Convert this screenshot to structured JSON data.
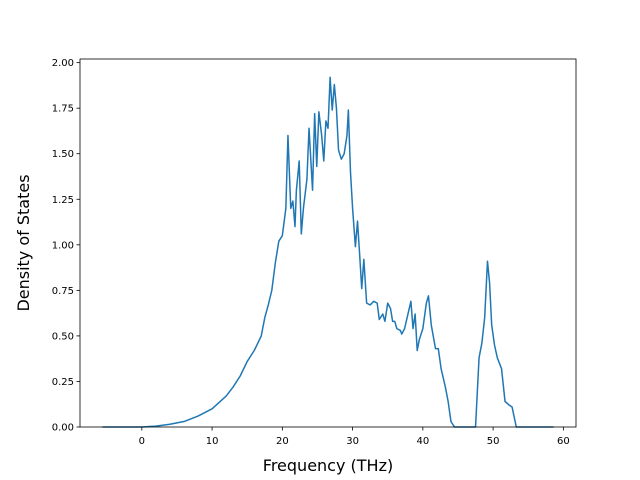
{
  "chart_data": {
    "type": "line",
    "x_label": "Frequency (THz)",
    "y_label": "Density of States",
    "color": "#1f77b4",
    "x": [
      -5.6,
      0,
      2,
      4,
      6,
      8,
      10,
      12,
      13,
      14,
      15,
      16,
      17,
      17.5,
      18,
      18.5,
      19,
      19.5,
      20,
      20.5,
      20.8,
      21.2,
      21.5,
      21.8,
      22,
      22.4,
      22.7,
      23,
      23.5,
      23.8,
      24.3,
      24.6,
      24.9,
      25.2,
      25.6,
      25.9,
      26.2,
      26.5,
      26.8,
      27.1,
      27.4,
      27.7,
      28,
      28.4,
      28.8,
      29.2,
      29.4,
      29.7,
      30,
      30.4,
      30.7,
      31,
      31.3,
      31.6,
      32,
      32.5,
      33,
      33.5,
      33.8,
      34.3,
      34.6,
      35,
      35.4,
      35.7,
      36,
      36.3,
      36.8,
      37,
      37.4,
      38,
      38.3,
      38.6,
      38.9,
      39.2,
      39.5,
      40,
      40.5,
      40.8,
      41.2,
      41.8,
      42.2,
      42.6,
      43.2,
      43.6,
      44,
      44.5,
      47.5,
      48,
      48.4,
      48.8,
      49.2,
      49.5,
      49.8,
      50.2,
      50.6,
      51.2,
      51.7,
      52.3,
      52.7,
      53.3,
      58.6
    ],
    "values": [
      0,
      0,
      0.005,
      0.015,
      0.03,
      0.06,
      0.1,
      0.17,
      0.22,
      0.28,
      0.36,
      0.42,
      0.5,
      0.6,
      0.67,
      0.75,
      0.9,
      1.02,
      1.05,
      1.2,
      1.6,
      1.2,
      1.24,
      1.1,
      1.3,
      1.46,
      1.06,
      1.2,
      1.36,
      1.64,
      1.3,
      1.72,
      1.43,
      1.73,
      1.6,
      1.46,
      1.68,
      1.64,
      1.92,
      1.74,
      1.88,
      1.75,
      1.52,
      1.47,
      1.5,
      1.6,
      1.74,
      1.4,
      1.2,
      0.99,
      1.13,
      0.95,
      0.76,
      0.92,
      0.68,
      0.67,
      0.69,
      0.68,
      0.59,
      0.62,
      0.58,
      0.68,
      0.65,
      0.58,
      0.58,
      0.54,
      0.53,
      0.51,
      0.54,
      0.64,
      0.69,
      0.54,
      0.62,
      0.42,
      0.48,
      0.54,
      0.68,
      0.72,
      0.56,
      0.43,
      0.43,
      0.32,
      0.22,
      0.14,
      0.03,
      0,
      0,
      0.38,
      0.46,
      0.6,
      0.91,
      0.79,
      0.56,
      0.45,
      0.38,
      0.32,
      0.14,
      0.12,
      0.11,
      0,
      0
    ],
    "xlim": [
      -8.8,
      61.8
    ],
    "ylim": [
      0,
      2.02
    ],
    "xticks": [
      0,
      10,
      20,
      30,
      40,
      50,
      60
    ],
    "yticks": [
      {
        "value": 0,
        "label": "0.00"
      },
      {
        "value": 0.25,
        "label": "0.25"
      },
      {
        "value": 0.5,
        "label": "0.50"
      },
      {
        "value": 0.75,
        "label": "0.75"
      },
      {
        "value": 1,
        "label": "1.00"
      },
      {
        "value": 1.25,
        "label": "1.25"
      },
      {
        "value": 1.5,
        "label": "1.50"
      },
      {
        "value": 1.75,
        "label": "1.75"
      },
      {
        "value": 2,
        "label": "2.00"
      }
    ]
  }
}
